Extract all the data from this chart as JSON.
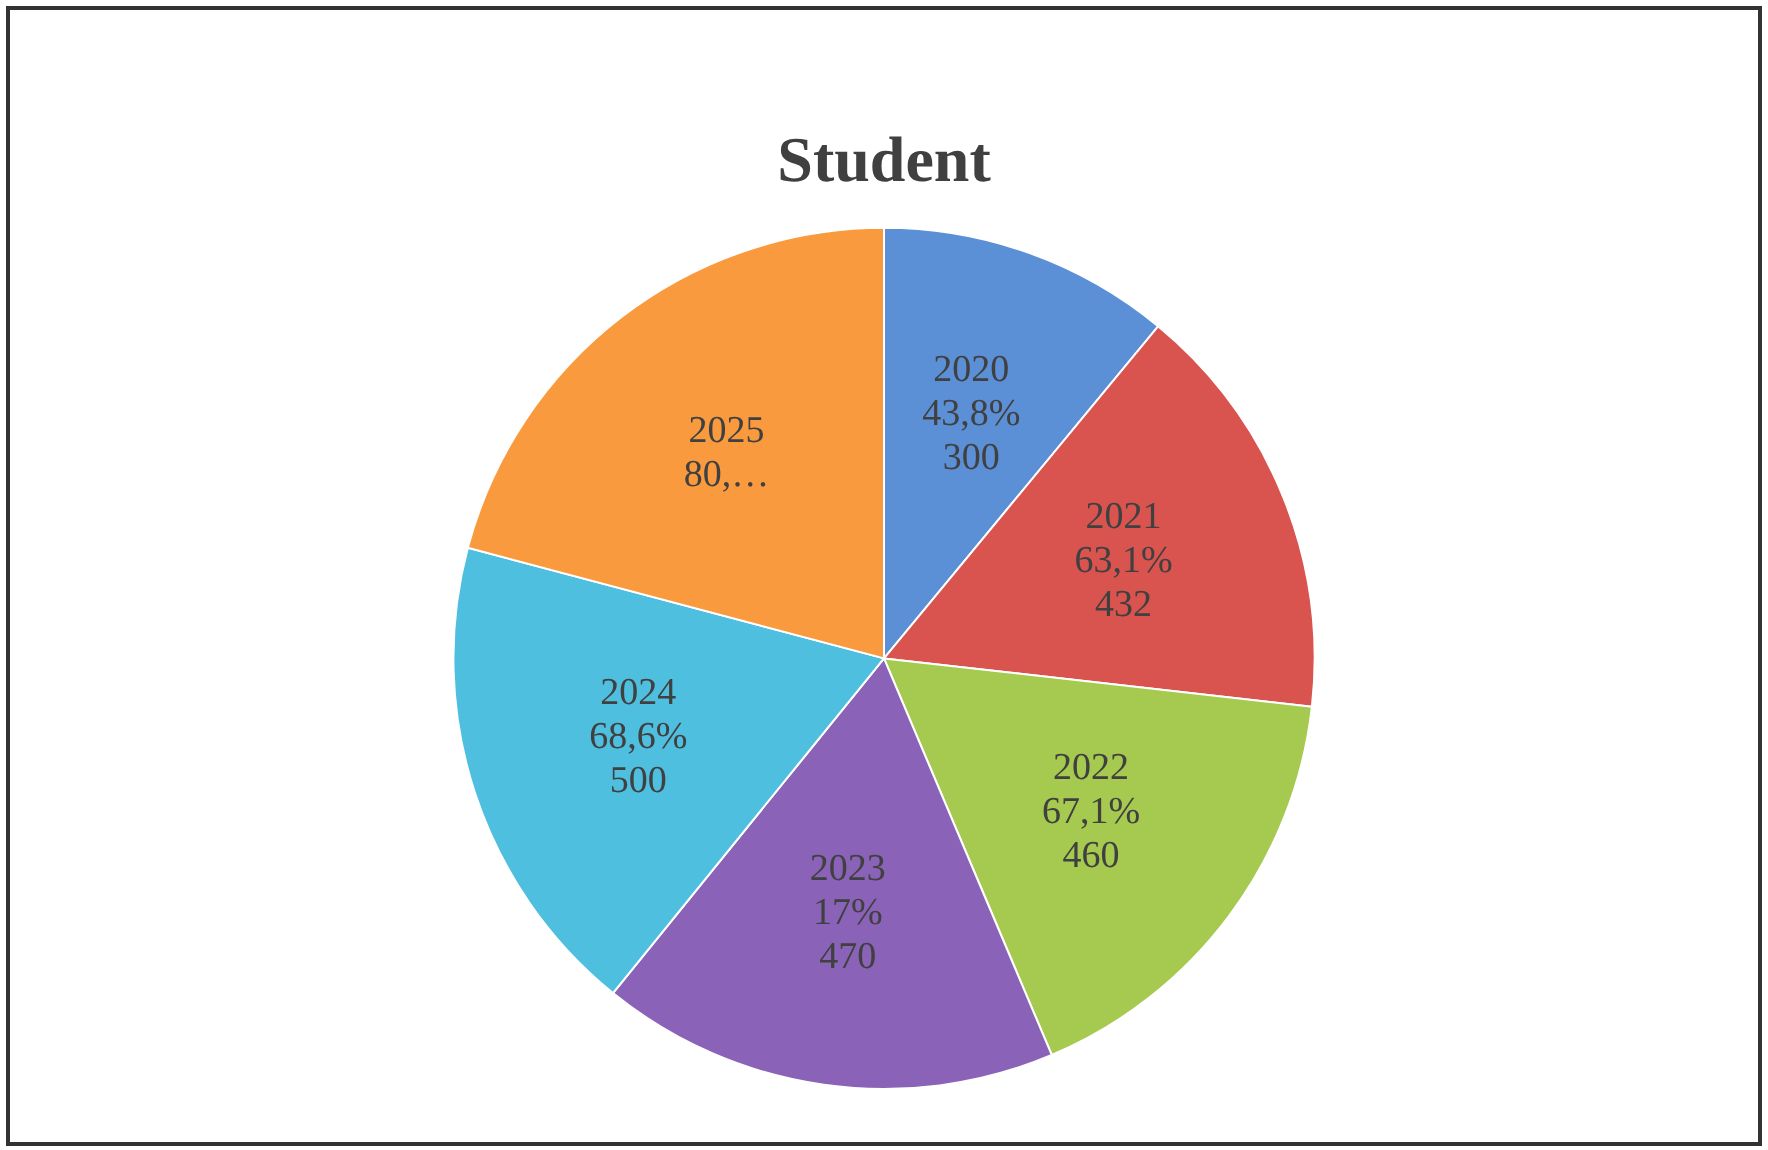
{
  "chart_data": {
    "type": "pie",
    "title": "Student",
    "categories": [
      "2020",
      "2021",
      "2022",
      "2023",
      "2024",
      "2025"
    ],
    "values": [
      300,
      432,
      460,
      470,
      500,
      570
    ],
    "colors": [
      "#5b8fd6",
      "#d9534f",
      "#a6c94f",
      "#8a63b8",
      "#4fbfdf",
      "#f99a3e"
    ],
    "value_labels": [
      "43,8%\n300",
      "63,1%\n432",
      "67,1%\n460",
      "17%\n470",
      "68,6%\n500",
      "80,…"
    ],
    "legend": false
  }
}
